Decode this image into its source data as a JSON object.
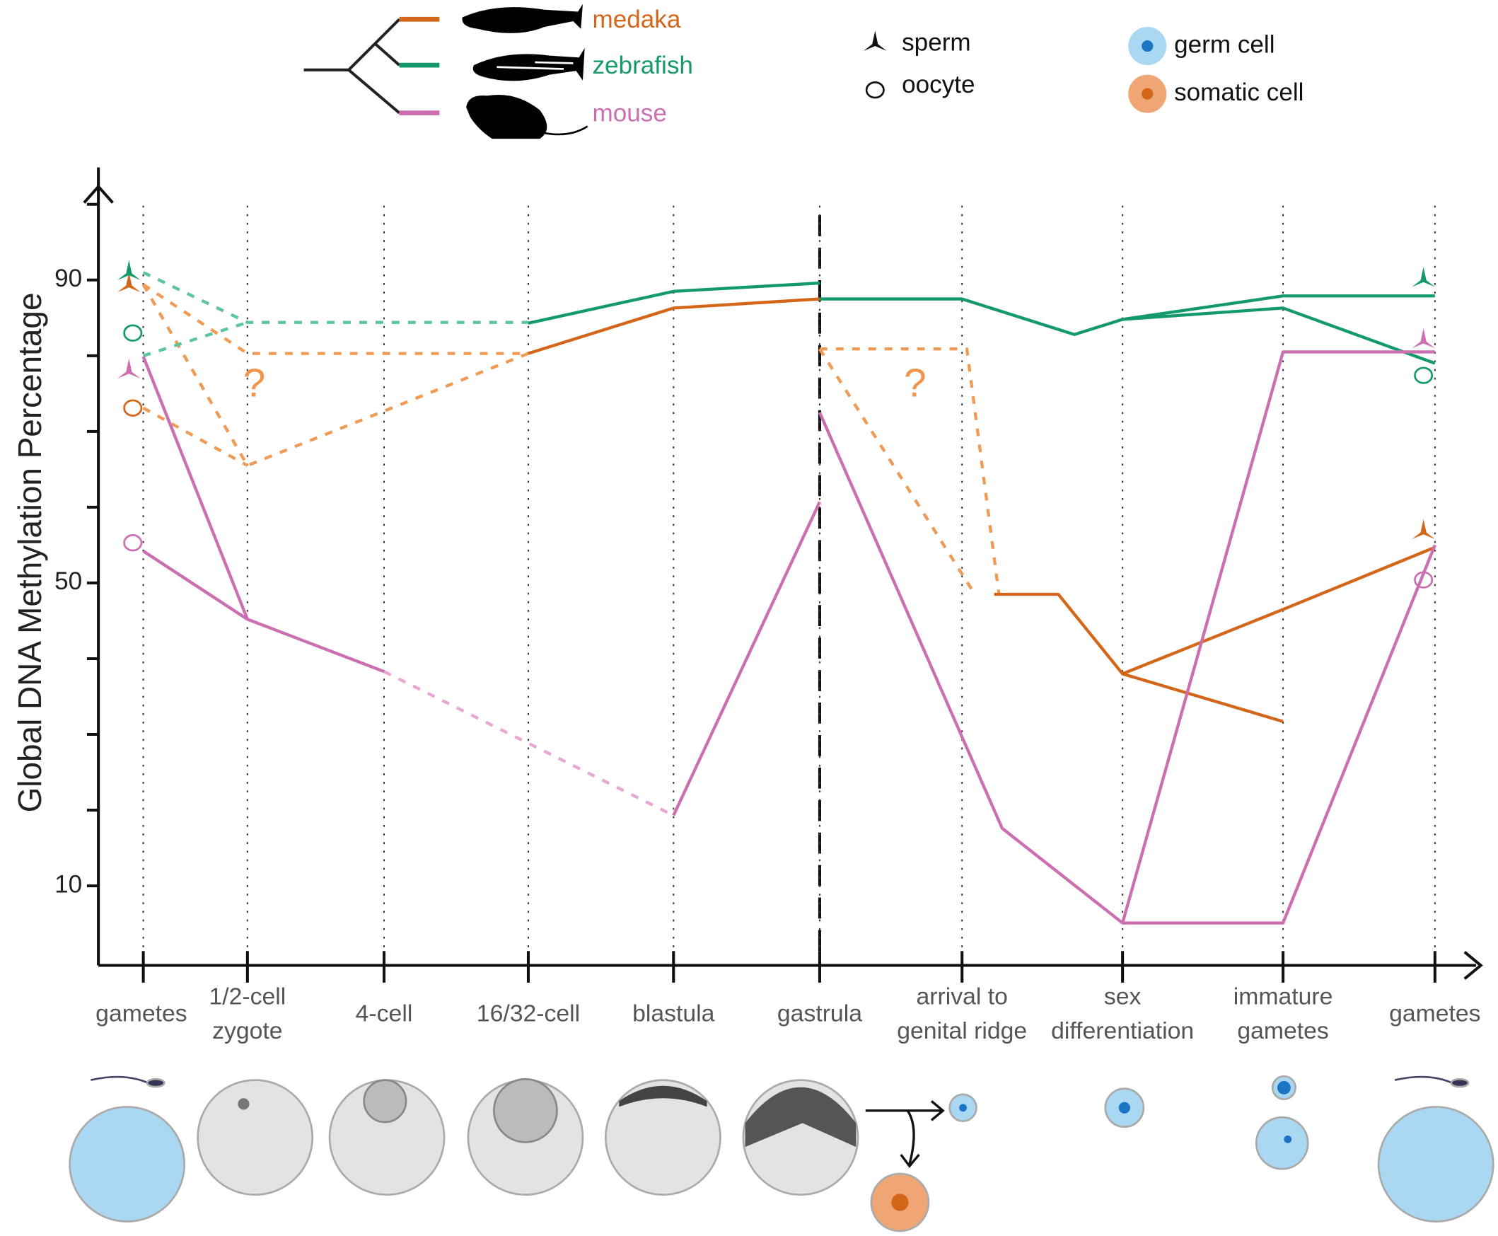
{
  "chart_data": {
    "type": "line",
    "y_label": "Global DNA Methylation Percentage",
    "categories": [
      [
        "gametes"
      ],
      [
        "1/2-cell",
        "zygote"
      ],
      [
        "4-cell"
      ],
      [
        "16/32-cell"
      ],
      [
        "blastula"
      ],
      [
        "gastrula"
      ],
      [
        "arrival to",
        "genital ridge"
      ],
      [
        "sex",
        "differentiation"
      ],
      [
        "immature",
        "gametes"
      ],
      [
        "gametes"
      ]
    ],
    "ylim": [
      -0.5,
      105.5
    ],
    "yticks": [
      10,
      50,
      90
    ],
    "minor_yticks": [
      20,
      30,
      40,
      60,
      70,
      80,
      100
    ],
    "series": [
      {
        "name": "medaka",
        "color": "#d4661a",
        "dash_color": "#ef9a55",
        "sperm": [
          89.4,
          56.8
        ],
        "oocyte": [
          73.1,
          null
        ],
        "segments": [
          {
            "dashed": true,
            "points": [
              [
                0,
                89.4
              ],
              [
                1,
                80.3
              ],
              [
                3,
                80.3
              ]
            ]
          },
          {
            "dashed": true,
            "points": [
              [
                0,
                89.4
              ],
              [
                1,
                65.5
              ],
              [
                3,
                80.3
              ]
            ]
          },
          {
            "dashed": true,
            "points": [
              [
                0,
                73.1
              ],
              [
                1,
                65.5
              ]
            ]
          },
          {
            "dashed": false,
            "points": [
              [
                3,
                80.3
              ],
              [
                4,
                86.3
              ],
              [
                5,
                87.5
              ]
            ]
          },
          {
            "dashed": true,
            "points": [
              [
                5,
                80.9
              ],
              [
                6.03,
                80.9
              ],
              [
                6.23,
                48.5
              ]
            ]
          },
          {
            "dashed": true,
            "points": [
              [
                5,
                80.9
              ],
              [
                6.08,
                48.5
              ]
            ]
          },
          {
            "dashed": false,
            "points": [
              [
                6.2,
                48.5
              ],
              [
                6.6,
                48.5
              ],
              [
                7,
                38.0
              ],
              [
                8,
                46.5
              ],
              [
                9,
                54.7
              ]
            ]
          },
          {
            "dashed": false,
            "points": [
              [
                7,
                38.0
              ],
              [
                8,
                31.7
              ]
            ]
          }
        ]
      },
      {
        "name": "zebrafish",
        "color": "#14996e",
        "dash_color": "#5cc4a0",
        "sperm": [
          91.0,
          90.1
        ],
        "oocyte": [
          83.0,
          77.4
        ],
        "segments": [
          {
            "dashed": true,
            "points": [
              [
                0,
                91.0
              ],
              [
                1,
                84.4
              ],
              [
                3,
                84.4
              ]
            ]
          },
          {
            "dashed": true,
            "points": [
              [
                0,
                80.0
              ],
              [
                1,
                84.4
              ]
            ]
          },
          {
            "dashed": false,
            "points": [
              [
                3,
                84.3
              ],
              [
                4,
                88.5
              ],
              [
                5,
                89.6
              ]
            ]
          },
          {
            "dashed": false,
            "points": [
              [
                5,
                87.5
              ],
              [
                6,
                87.5
              ],
              [
                6.7,
                82.8
              ],
              [
                7,
                84.8
              ],
              [
                8,
                87.9
              ],
              [
                9,
                87.9
              ]
            ]
          },
          {
            "dashed": false,
            "points": [
              [
                7,
                84.8
              ],
              [
                8,
                86.3
              ],
              [
                9,
                79.0
              ]
            ]
          }
        ]
      },
      {
        "name": "mouse",
        "color": "#cc6fb0",
        "dash_color": "#e6a8d3",
        "sperm": [
          78.0,
          82.0
        ],
        "oocyte": [
          55.3,
          50.4
        ],
        "segments": [
          {
            "dashed": false,
            "points": [
              [
                0,
                79.9
              ],
              [
                1,
                45.2
              ],
              [
                2,
                38.3
              ]
            ]
          },
          {
            "dashed": false,
            "points": [
              [
                0,
                54.2
              ],
              [
                1,
                45.2
              ]
            ]
          },
          {
            "dashed": true,
            "points": [
              [
                2,
                38.3
              ],
              [
                4,
                19.3
              ]
            ]
          },
          {
            "dashed": false,
            "points": [
              [
                4,
                19.3
              ],
              [
                5,
                60.7
              ]
            ]
          },
          {
            "dashed": false,
            "points": [
              [
                5,
                72.5
              ],
              [
                6.25,
                17.6
              ],
              [
                7,
                5.1
              ],
              [
                8,
                5.1
              ],
              [
                9,
                55.0
              ]
            ]
          },
          {
            "dashed": false,
            "points": [
              [
                7,
                5.1
              ],
              [
                8,
                80.5
              ],
              [
                9,
                80.5
              ]
            ]
          }
        ]
      }
    ],
    "annotations": [
      {
        "text": "?",
        "x": 1.05,
        "y": 76
      },
      {
        "text": "?",
        "x": 5.67,
        "y": 76
      }
    ],
    "marker_legend": [
      "sperm",
      "oocyte"
    ],
    "cell_legend": [
      "germ cell",
      "somatic cell"
    ]
  }
}
